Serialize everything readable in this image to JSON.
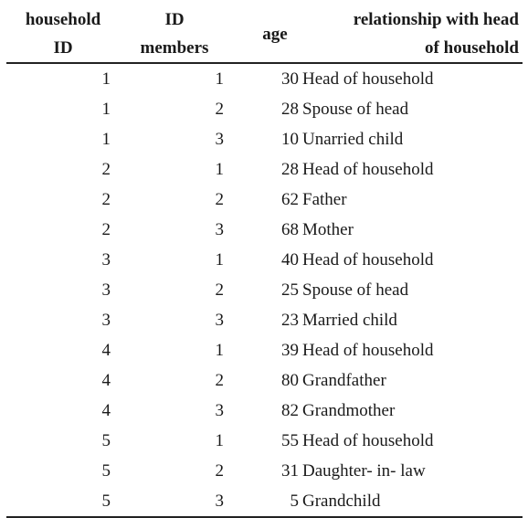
{
  "table": {
    "headers": {
      "household": [
        "household",
        "ID"
      ],
      "members": [
        "ID",
        "members"
      ],
      "age": "age",
      "relationship": [
        "relationship with head",
        "of household"
      ]
    },
    "rows": [
      {
        "household": "1",
        "member": "1",
        "age": "30",
        "relationship": "Head of household"
      },
      {
        "household": "1",
        "member": "2",
        "age": "28",
        "relationship": "Spouse of head"
      },
      {
        "household": "1",
        "member": "3",
        "age": "10",
        "relationship": "Unarried child"
      },
      {
        "household": "2",
        "member": "1",
        "age": "28",
        "relationship": "Head of household"
      },
      {
        "household": "2",
        "member": "2",
        "age": "62",
        "relationship": "Father"
      },
      {
        "household": "2",
        "member": "3",
        "age": "68",
        "relationship": "Mother"
      },
      {
        "household": "3",
        "member": "1",
        "age": "40",
        "relationship": "Head of household"
      },
      {
        "household": "3",
        "member": "2",
        "age": "25",
        "relationship": "Spouse of head"
      },
      {
        "household": "3",
        "member": "3",
        "age": "23",
        "relationship": "Married child"
      },
      {
        "household": "4",
        "member": "1",
        "age": "39",
        "relationship": "Head of household"
      },
      {
        "household": "4",
        "member": "2",
        "age": "80",
        "relationship": "Grandfather"
      },
      {
        "household": "4",
        "member": "3",
        "age": "82",
        "relationship": "Grandmother"
      },
      {
        "household": "5",
        "member": "1",
        "age": "55",
        "relationship": "Head of household"
      },
      {
        "household": "5",
        "member": "2",
        "age": "31",
        "relationship": "Daughter- in- law"
      },
      {
        "household": "5",
        "member": "3",
        "age": "5",
        "relationship": "Grandchild"
      }
    ]
  }
}
